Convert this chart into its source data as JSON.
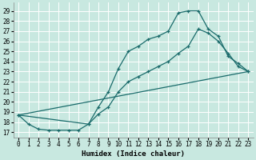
{
  "xlabel": "Humidex (Indice chaleur)",
  "xlim": [
    -0.5,
    23.5
  ],
  "ylim": [
    16.5,
    29.8
  ],
  "yticks": [
    17,
    18,
    19,
    20,
    21,
    22,
    23,
    24,
    25,
    26,
    27,
    28,
    29
  ],
  "xticks": [
    0,
    1,
    2,
    3,
    4,
    5,
    6,
    7,
    8,
    9,
    10,
    11,
    12,
    13,
    14,
    15,
    16,
    17,
    18,
    19,
    20,
    21,
    22,
    23
  ],
  "bg_color": "#c8e8e0",
  "grid_color": "#ffffff",
  "line_color": "#1a6b6b",
  "line1_x": [
    0,
    1,
    2,
    3,
    4,
    5,
    6,
    7,
    8,
    9,
    10,
    11,
    12,
    13,
    14,
    15,
    16,
    17,
    18,
    19,
    20,
    21,
    22,
    23
  ],
  "line1_y": [
    18.7,
    17.8,
    17.3,
    17.2,
    17.2,
    17.2,
    17.2,
    17.8,
    19.5,
    21.0,
    23.3,
    25.0,
    25.5,
    26.2,
    26.5,
    27.0,
    28.8,
    29.0,
    29.0,
    27.2,
    26.5,
    24.5,
    23.8,
    23.0
  ],
  "line2_x": [
    0,
    7,
    8,
    9,
    10,
    11,
    12,
    13,
    14,
    15,
    16,
    17,
    18,
    19,
    20,
    21,
    22,
    23
  ],
  "line2_y": [
    18.7,
    17.8,
    18.8,
    19.5,
    21.0,
    22.0,
    22.5,
    23.0,
    23.5,
    24.0,
    24.8,
    25.5,
    27.2,
    26.8,
    26.0,
    24.8,
    23.5,
    23.0
  ],
  "line3_x": [
    0,
    23
  ],
  "line3_y": [
    18.7,
    23.0
  ]
}
